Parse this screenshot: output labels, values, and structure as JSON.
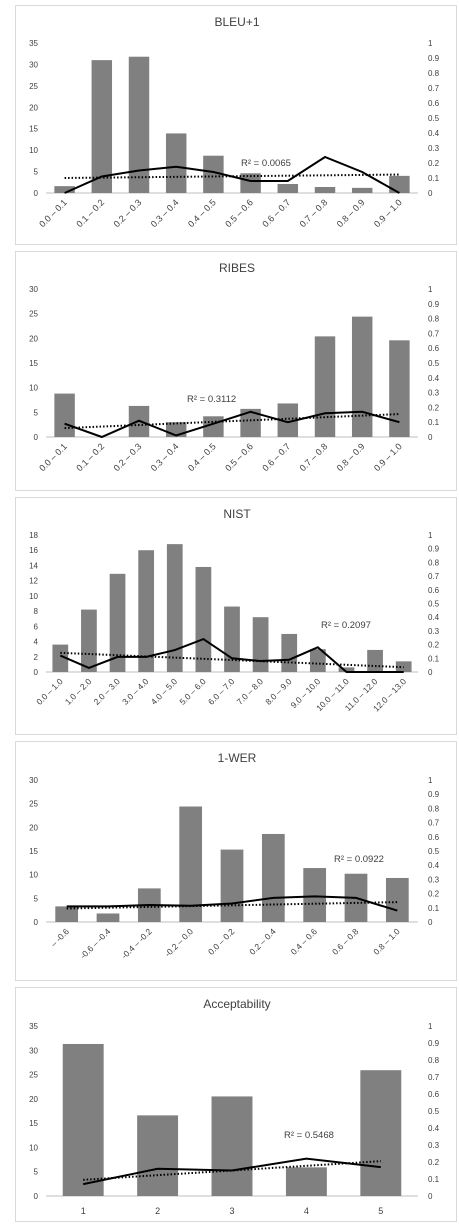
{
  "chart_data": [
    {
      "type": "bar",
      "title": "BLEU+1",
      "categories": [
        "0.0 – 0.1",
        "0.1 – 0.2",
        "0.2 – 0.3",
        "0.3 – 0.4",
        "0.4 – 0.5",
        "0.5 – 0.6",
        "0.6 – 0.7",
        "0.7 – 0.8",
        "0.8 – 0.9",
        "0.9 – 1.0"
      ],
      "values": [
        1.6,
        31.0,
        31.8,
        13.9,
        8.7,
        4.6,
        2.1,
        1.4,
        1.2,
        4.0
      ],
      "line_values": [
        0.0,
        0.11,
        0.15,
        0.175,
        0.14,
        0.08,
        0.08,
        0.24,
        0.14,
        0.0
      ],
      "trend": [
        0.1,
        0.123
      ],
      "r2_label": "R² = 0.0065",
      "ylim_left": [
        0,
        35
      ],
      "yticks_left": [
        0,
        5,
        10,
        15,
        20,
        25,
        30,
        35
      ],
      "ylim_right": [
        0,
        1
      ],
      "yticks_right": [
        "0",
        "0.1",
        "0.2",
        "0.3",
        "0.4",
        "0.5",
        "0.6",
        "0.7",
        "0.8",
        "0.9",
        "1"
      ]
    },
    {
      "type": "bar",
      "title": "RIBES",
      "categories": [
        "0.0 – 0.1",
        "0.1 – 0.2",
        "0.2 – 0.3",
        "0.3 – 0.4",
        "0.4 – 0.5",
        "0.5 – 0.6",
        "0.6 – 0.7",
        "0.7 – 0.8",
        "0.8 – 0.9",
        "0.9 – 1.0"
      ],
      "values": [
        8.8,
        0,
        6.3,
        3.0,
        4.2,
        5.7,
        6.8,
        20.4,
        24.4,
        19.6
      ],
      "line_values": [
        0.09,
        0.0,
        0.11,
        0.01,
        0.09,
        0.17,
        0.1,
        0.16,
        0.17,
        0.1
      ],
      "trend": [
        0.06,
        0.155
      ],
      "r2_label": "R² = 0.3112",
      "ylim_left": [
        0,
        30
      ],
      "yticks_left": [
        0,
        5,
        10,
        15,
        20,
        25,
        30
      ],
      "ylim_right": [
        0,
        1
      ],
      "yticks_right": [
        "0",
        "0.1",
        "0.2",
        "0.3",
        "0.4",
        "0.5",
        "0.6",
        "0.7",
        "0.8",
        "0.9",
        "1"
      ]
    },
    {
      "type": "bar",
      "title": "NIST",
      "categories": [
        "0.0 – 1.0",
        "1.0 – 2.0",
        "2.0 – 3.0",
        "3.0 – 4.0",
        "4.0 – 5.0",
        "5.0 – 6.0",
        "6.0 – 7.0",
        "7.0 – 8.0",
        "8.0 – 9.0",
        "9.0 – 10.0",
        "10.0 – 11.0",
        "11.0 – 12.0",
        "12.0 – 13.0"
      ],
      "values": [
        3.6,
        8.2,
        12.9,
        16.0,
        16.8,
        13.8,
        8.6,
        7.2,
        5.0,
        3.0,
        0.6,
        2.9,
        1.4
      ],
      "line_values": [
        0.12,
        0.03,
        0.11,
        0.11,
        0.16,
        0.24,
        0.1,
        0.08,
        0.09,
        0.18,
        0.0,
        0.0,
        0.0
      ],
      "trend": [
        0.14,
        0.035
      ],
      "r2_label": "R² = 0.2097",
      "ylim_left": [
        0,
        18
      ],
      "yticks_left": [
        0,
        2,
        4,
        6,
        8,
        10,
        12,
        14,
        16,
        18
      ],
      "ylim_right": [
        0,
        1
      ],
      "yticks_right": [
        "0",
        "0.1",
        "0.2",
        "0.3",
        "0.4",
        "0.5",
        "0.6",
        "0.7",
        "0.8",
        "0.9",
        "1"
      ]
    },
    {
      "type": "bar",
      "title": "1-WER",
      "categories": [
        "– -0.6",
        "-0.6 – -0.4",
        "-0.4 – -0.2",
        "-0.2 – 0.0",
        "0.0 – 0.2",
        "0.2 – 0.4",
        "0.4 – 0.6",
        "0.6 – 0.8",
        "0.8 – 1.0"
      ],
      "values": [
        3.3,
        1.8,
        7.1,
        24.4,
        15.3,
        18.6,
        11.4,
        10.2,
        9.3
      ],
      "line_values": [
        0.11,
        0.11,
        0.12,
        0.115,
        0.13,
        0.17,
        0.18,
        0.17,
        0.08
      ],
      "trend": [
        0.095,
        0.14
      ],
      "r2_label": "R² = 0.0922",
      "ylim_left": [
        0,
        30
      ],
      "yticks_left": [
        0,
        5,
        10,
        15,
        20,
        25,
        30
      ],
      "ylim_right": [
        0,
        1
      ],
      "yticks_right": [
        "0",
        "0.1",
        "0.2",
        "0.3",
        "0.4",
        "0.5",
        "0.6",
        "0.7",
        "0.8",
        "0.9",
        "1"
      ]
    },
    {
      "type": "bar",
      "title": "Acceptability",
      "categories": [
        "1",
        "2",
        "3",
        "4",
        "5"
      ],
      "values": [
        31.3,
        16.6,
        20.5,
        5.9,
        25.9
      ],
      "line_values": [
        0.07,
        0.16,
        0.15,
        0.22,
        0.17
      ],
      "trend": [
        0.095,
        0.205
      ],
      "r2_label": "R² = 0.5468",
      "ylim_left": [
        0,
        35
      ],
      "yticks_left": [
        0,
        5,
        10,
        15,
        20,
        25,
        30,
        35
      ],
      "ylim_right": [
        0,
        1
      ],
      "yticks_right": [
        "0",
        "0.1",
        "0.2",
        "0.3",
        "0.4",
        "0.5",
        "0.6",
        "0.7",
        "0.8",
        "0.9",
        "1"
      ]
    }
  ],
  "colors": {
    "bar": "#808080",
    "line": "#000000",
    "trend": "#000000",
    "text": "#404040",
    "axis": "#bfbfbf"
  }
}
